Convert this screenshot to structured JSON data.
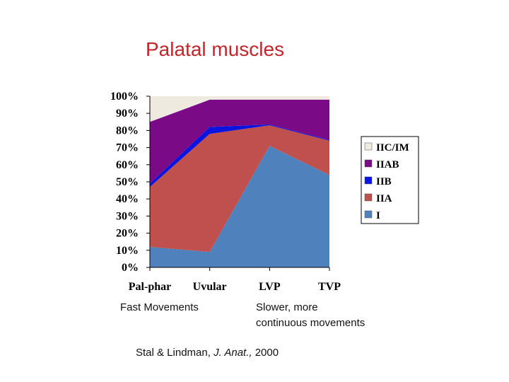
{
  "title": "Palatal muscles",
  "chart_data": {
    "type": "area",
    "stacked": "percent",
    "categories": [
      "Pal-phar",
      "Uvular",
      "LVP",
      "TVP"
    ],
    "ylim": [
      0,
      100
    ],
    "ytick_labels": [
      "0%",
      "10%",
      "20%",
      "30%",
      "40%",
      "50%",
      "60%",
      "70%",
      "80%",
      "90%",
      "100%"
    ],
    "series": [
      {
        "name": "I",
        "color": "#4f81bd",
        "values": [
          12,
          9,
          71,
          54
        ]
      },
      {
        "name": "IIA",
        "color": "#c0504d",
        "values": [
          35,
          69,
          12,
          20
        ]
      },
      {
        "name": "IIB",
        "color": "#0a14e0",
        "values": [
          2,
          4,
          0.5,
          0.5
        ]
      },
      {
        "name": "IIAB",
        "color": "#7b0a87",
        "values": [
          36,
          16,
          14.5,
          23.5
        ]
      },
      {
        "name": "IIC/IM",
        "color": "#eeeae0",
        "values": [
          15,
          2,
          2,
          2
        ]
      }
    ],
    "legend_order": [
      "IIC/IM",
      "IIAB",
      "IIB",
      "IIA",
      "I"
    ],
    "legend_position": "right",
    "grid": false
  },
  "notes": {
    "fast": "Fast Movements",
    "slow_line1": "Slower, more",
    "slow_line2": "continuous movements",
    "citation_pre": "Stal & Lindman, ",
    "citation_journal": "J. Anat.,",
    "citation_year": " 2000"
  }
}
